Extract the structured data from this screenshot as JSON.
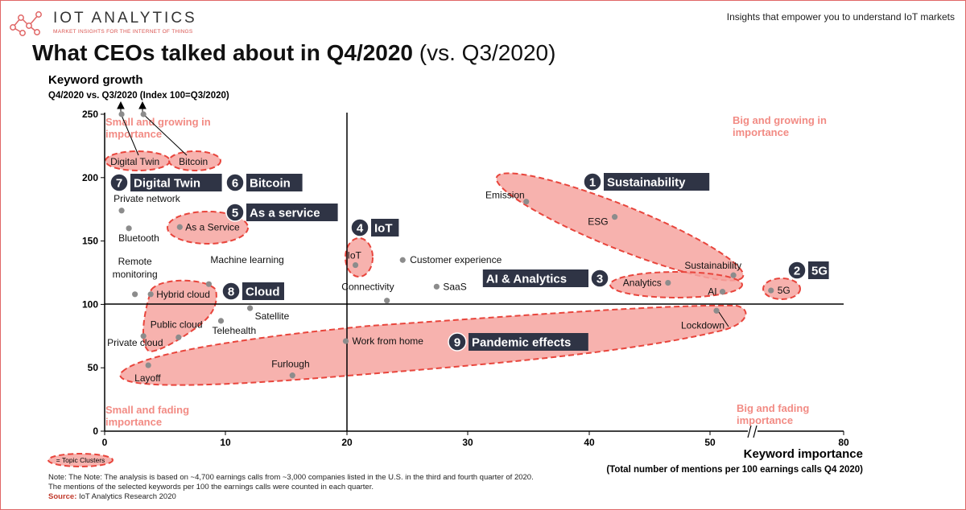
{
  "header": {
    "brand_name": "IOT ANALYTICS",
    "brand_sub": "MARKET INSIGHTS FOR THE INTERNET OF THINGS",
    "tagline": "Insights that empower you to understand IoT markets"
  },
  "title": {
    "main": "What CEOs talked about in Q4/2020",
    "sub": " (vs. Q3/2020)"
  },
  "colors": {
    "accent": "#e8706b",
    "cluster_fill": "#f6a5a0",
    "badge": "#2f3445",
    "point": "#8c8c8c"
  },
  "chart_data": {
    "type": "scatter",
    "ylabel": "Keyword growth",
    "ylabel_sub": "Q4/2020 vs. Q3/2020 (Index 100=Q3/2020)",
    "xlabel": "Keyword importance",
    "xlabel_sub": "(Total number of mentions per 100 earnings calls Q4 2020)",
    "x_ticks": [
      "0",
      "10",
      "20",
      "30",
      "40",
      "50",
      "80"
    ],
    "y_ticks": [
      "0",
      "50",
      "100",
      "150",
      "200",
      "250"
    ],
    "axis_break": true,
    "quadrants": {
      "top_left": "Small and growing in importance",
      "top_right": "Big and growing in importance",
      "bottom_left": "Small and fading importance",
      "bottom_right": "Big and fading importance"
    },
    "points": [
      {
        "label": "Emission",
        "x": 34.8,
        "y": 181
      },
      {
        "label": "ESG",
        "x": 42.1,
        "y": 169
      },
      {
        "label": "Sustainability",
        "x": 51.9,
        "y": 123
      },
      {
        "label": "5G",
        "x": 55.0,
        "y": 111
      },
      {
        "label": "Analytics",
        "x": 46.5,
        "y": 117
      },
      {
        "label": "AI",
        "x": 51.0,
        "y": 110
      },
      {
        "label": "Lockdown",
        "x": 50.5,
        "y": 95
      },
      {
        "label": "IoT",
        "x": 20.7,
        "y": 131
      },
      {
        "label": "Customer experience",
        "x": 24.6,
        "y": 135
      },
      {
        "label": "SaaS",
        "x": 27.4,
        "y": 114
      },
      {
        "label": "Connectivity",
        "x": 23.3,
        "y": 103
      },
      {
        "label": "Work from home",
        "x": 19.9,
        "y": 71
      },
      {
        "label": "Furlough",
        "x": 15.5,
        "y": 44
      },
      {
        "label": "Satellite",
        "x": 12.0,
        "y": 97
      },
      {
        "label": "Telehealth",
        "x": 9.6,
        "y": 87
      },
      {
        "label": "Machine learning",
        "x": 8.6,
        "y": 116
      },
      {
        "label": "Hybrid cloud",
        "x": 3.8,
        "y": 108
      },
      {
        "label": "Remote monitoring",
        "x": 2.5,
        "y": 108
      },
      {
        "label": "Public cloud",
        "x": 6.1,
        "y": 74
      },
      {
        "label": "Private cloud",
        "x": 3.2,
        "y": 75
      },
      {
        "label": "Layoff",
        "x": 3.6,
        "y": 52
      },
      {
        "label": "As a Service",
        "x": 6.2,
        "y": 161
      },
      {
        "label": "Private network",
        "x": 1.4,
        "y": 174
      },
      {
        "label": "Bluetooth",
        "x": 2.0,
        "y": 160
      },
      {
        "label": "Digital Twin",
        "x": 1.4,
        "y": 250
      },
      {
        "label": "Bitcoin",
        "x": 3.2,
        "y": 250
      }
    ],
    "clusters": [
      {
        "number": "1",
        "name": "Sustainability"
      },
      {
        "number": "2",
        "name": "5G"
      },
      {
        "number": "3",
        "name": "AI & Analytics"
      },
      {
        "number": "4",
        "name": "IoT"
      },
      {
        "number": "5",
        "name": "As a service"
      },
      {
        "number": "6",
        "name": "Bitcoin"
      },
      {
        "number": "7",
        "name": "Digital Twin"
      },
      {
        "number": "8",
        "name": "Cloud"
      },
      {
        "number": "9",
        "name": "Pandemic effects"
      }
    ],
    "legend_label": "= Topic Clusters"
  },
  "footnote": {
    "line1": "Note: The Note: The analysis is based on ~4,700 earnings calls from ~3,000 companies listed in the U.S. in the third and fourth quarter of 2020.",
    "line2": "The mentions of the selected keywords per 100 the earnings calls were counted in each quarter.",
    "source_label": "Source:",
    "source_text": " IoT Analytics Research 2020"
  }
}
